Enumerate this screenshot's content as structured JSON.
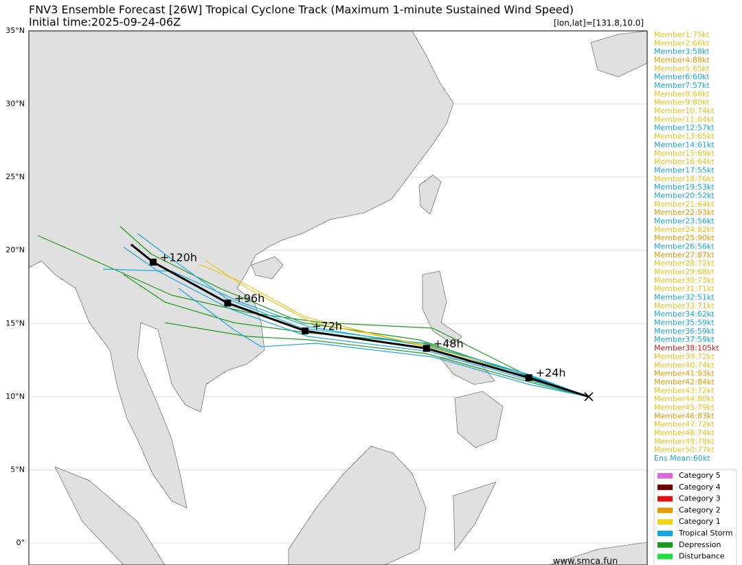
{
  "header": {
    "title": "FNV3 Ensemble Forecast [26W] Tropical Cyclone Track (Maximum 1-minute Sustained Wind Speed)",
    "subtitle": "Initial time:2025-09-24-06Z",
    "position": "[lon,lat]=[131.8,10.0]"
  },
  "map": {
    "lonlim": [
      93.5,
      135.8
    ],
    "latlim": [
      -1.5,
      35
    ],
    "latticks": [
      {
        "value": 35,
        "label": "35°N"
      },
      {
        "value": 30,
        "label": "30°N"
      },
      {
        "value": 25,
        "label": "25°N"
      },
      {
        "value": 20,
        "label": "20°N"
      },
      {
        "value": 15,
        "label": "15°N"
      },
      {
        "value": 10,
        "label": "10°N"
      },
      {
        "value": 5,
        "label": "5°N"
      },
      {
        "value": 0,
        "label": "0°"
      }
    ],
    "grid": true
  },
  "mean_track": {
    "lon": [
      131.8,
      127.7,
      120.7,
      112.4,
      107.1,
      102.0,
      100.5
    ],
    "lat": [
      10.0,
      11.3,
      13.3,
      14.5,
      16.4,
      19.2,
      20.4
    ],
    "labels": [
      null,
      "+24h",
      "+48h",
      "+72h",
      "+96h",
      "+120h",
      null
    ],
    "color": "#000000"
  },
  "members": [
    {
      "label": "Member1:75kt",
      "color": "#e8c41a"
    },
    {
      "label": "Member2:66kt",
      "color": "#e8c41a"
    },
    {
      "label": "Member3:58kt",
      "color": "#18a8dc"
    },
    {
      "label": "Member4:88kt",
      "color": "#e69a00"
    },
    {
      "label": "Member5:65kt",
      "color": "#e8c41a"
    },
    {
      "label": "Member6:60kt",
      "color": "#18a8dc"
    },
    {
      "label": "Member7:57kt",
      "color": "#18a8dc"
    },
    {
      "label": "Member8:66kt",
      "color": "#e8c41a"
    },
    {
      "label": "Member9:80kt",
      "color": "#e8c41a"
    },
    {
      "label": "Member10:74kt",
      "color": "#e8c41a"
    },
    {
      "label": "Member11:64kt",
      "color": "#e8c41a"
    },
    {
      "label": "Member12:57kt",
      "color": "#18a8dc"
    },
    {
      "label": "Member13:65kt",
      "color": "#e8c41a"
    },
    {
      "label": "Member14:61kt",
      "color": "#18a8dc"
    },
    {
      "label": "Member15:69kt",
      "color": "#e8c41a"
    },
    {
      "label": "Member16:64kt",
      "color": "#e8c41a"
    },
    {
      "label": "Member17:55kt",
      "color": "#18a8dc"
    },
    {
      "label": "Member18:76kt",
      "color": "#e8c41a"
    },
    {
      "label": "Member19:53kt",
      "color": "#18a8dc"
    },
    {
      "label": "Member20:52kt",
      "color": "#18a8dc"
    },
    {
      "label": "Member21:64kt",
      "color": "#e8c41a"
    },
    {
      "label": "Member22:93kt",
      "color": "#e69a00"
    },
    {
      "label": "Member23:56kt",
      "color": "#18a8dc"
    },
    {
      "label": "Member24:82kt",
      "color": "#e8c41a"
    },
    {
      "label": "Member25:90kt",
      "color": "#e69a00"
    },
    {
      "label": "Member26:56kt",
      "color": "#18a8dc"
    },
    {
      "label": "Member27:87kt",
      "color": "#e69a00"
    },
    {
      "label": "Member28:72kt",
      "color": "#e8c41a"
    },
    {
      "label": "Member29:68kt",
      "color": "#e8c41a"
    },
    {
      "label": "Member30:73kt",
      "color": "#e8c41a"
    },
    {
      "label": "Member31:71kt",
      "color": "#e8c41a"
    },
    {
      "label": "Member32:51kt",
      "color": "#18a8dc"
    },
    {
      "label": "Member33:71kt",
      "color": "#e8c41a"
    },
    {
      "label": "Member34:62kt",
      "color": "#18a8dc"
    },
    {
      "label": "Member35:59kt",
      "color": "#18a8dc"
    },
    {
      "label": "Member36:59kt",
      "color": "#18a8dc"
    },
    {
      "label": "Member37:59kt",
      "color": "#18a8dc"
    },
    {
      "label": "Member38:105kt",
      "color": "#e01414"
    },
    {
      "label": "Member39:72kt",
      "color": "#e8c41a"
    },
    {
      "label": "Member40:74kt",
      "color": "#e8c41a"
    },
    {
      "label": "Member41:93kt",
      "color": "#e69a00"
    },
    {
      "label": "Member42:84kt",
      "color": "#e69a00"
    },
    {
      "label": "Member43:72kt",
      "color": "#e8c41a"
    },
    {
      "label": "Member44:80kt",
      "color": "#e8c41a"
    },
    {
      "label": "Member45:79kt",
      "color": "#e8c41a"
    },
    {
      "label": "Member46:83kt",
      "color": "#e69a00"
    },
    {
      "label": "Member47:72kt",
      "color": "#e8c41a"
    },
    {
      "label": "Member48:74kt",
      "color": "#e8c41a"
    },
    {
      "label": "Member49:78kt",
      "color": "#e8c41a"
    },
    {
      "label": "Member50:77kt",
      "color": "#e8c41a"
    },
    {
      "label": "Ens Mean:60kt",
      "color": "#18a8dc"
    }
  ],
  "legend": [
    {
      "label": "Category 5",
      "color": "#e066e0"
    },
    {
      "label": "Category 4",
      "color": "#6b0000"
    },
    {
      "label": "Category 3",
      "color": "#e01010"
    },
    {
      "label": "Category 2",
      "color": "#e69c00"
    },
    {
      "label": "Category 1",
      "color": "#efd21a"
    },
    {
      "label": "Tropical Storm",
      "color": "#10a8e0"
    },
    {
      "label": "Depression",
      "color": "#1a9a1a"
    },
    {
      "label": "Disturbance",
      "color": "#20e040"
    }
  ],
  "watermark": "www.smca.fun"
}
